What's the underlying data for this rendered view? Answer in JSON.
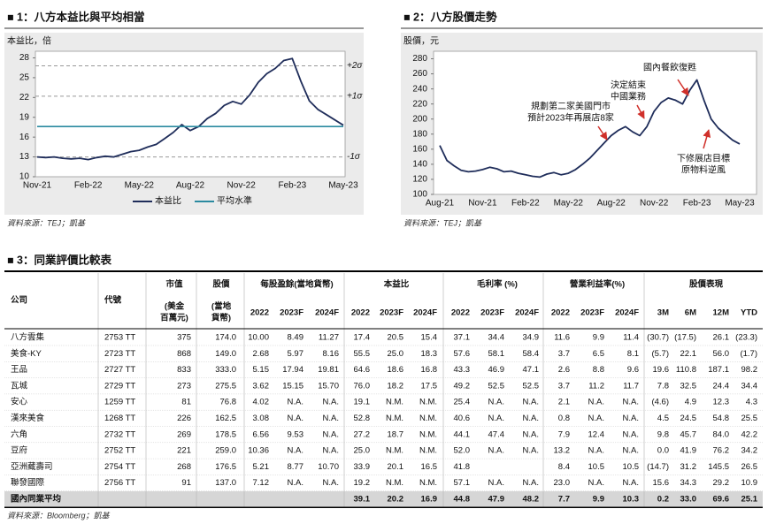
{
  "chart_data": [
    {
      "type": "line",
      "title": "■ 1：八方本益比與平均相當",
      "ylabel": "本益比，倍",
      "categories": [
        "Nov-21",
        null,
        null,
        null,
        null,
        null,
        "Feb-22",
        null,
        null,
        null,
        null,
        null,
        "May-22",
        null,
        null,
        null,
        null,
        null,
        "Aug-22",
        null,
        null,
        null,
        null,
        null,
        "Nov-22",
        null,
        null,
        null,
        null,
        null,
        "Feb-23",
        null,
        null,
        null,
        null,
        null,
        "May-23"
      ],
      "series": [
        {
          "name": "本益比",
          "color": "#1f2d5a",
          "values": [
            13.0,
            12.9,
            13.0,
            12.8,
            12.7,
            12.8,
            12.6,
            12.9,
            13.1,
            13.0,
            13.4,
            13.8,
            14.0,
            14.5,
            14.9,
            15.8,
            16.7,
            17.9,
            17.0,
            17.6,
            18.8,
            19.6,
            20.8,
            21.4,
            21.0,
            22.4,
            24.3,
            25.6,
            26.4,
            27.6,
            27.9,
            24.5,
            21.5,
            20.2,
            19.4,
            18.6,
            17.8
          ]
        },
        {
          "name": "平均水準",
          "color": "#2b8aa0",
          "values": [
            17.6,
            17.6,
            17.6,
            17.6,
            17.6,
            17.6,
            17.6,
            17.6,
            17.6,
            17.6,
            17.6,
            17.6,
            17.6,
            17.6,
            17.6,
            17.6,
            17.6,
            17.6,
            17.6,
            17.6,
            17.6,
            17.6,
            17.6,
            17.6,
            17.6,
            17.6,
            17.6,
            17.6,
            17.6,
            17.6,
            17.6,
            17.6,
            17.6,
            17.6,
            17.6,
            17.6,
            17.6
          ]
        }
      ],
      "reference_lines": [
        {
          "value": 26.8,
          "label": "+2σ"
        },
        {
          "value": 22.2,
          "label": "+1σ"
        },
        {
          "value": 13.0,
          "label": "-1σ"
        }
      ],
      "ylim": [
        10,
        29
      ],
      "yticks": [
        10,
        13,
        16,
        19,
        22,
        25,
        28
      ],
      "legend": "bottom",
      "source": "資料來源：TEJ；凱基"
    },
    {
      "type": "line",
      "title": "■ 2：八方股價走勢",
      "ylabel": "股價，元",
      "categories": [
        "Aug-21",
        null,
        null,
        null,
        null,
        null,
        "Nov-21",
        null,
        null,
        null,
        null,
        null,
        "Feb-22",
        null,
        null,
        null,
        null,
        null,
        "May-22",
        null,
        null,
        null,
        null,
        null,
        "Aug-22",
        null,
        null,
        null,
        null,
        null,
        "Nov-22",
        null,
        null,
        null,
        null,
        null,
        "Feb-23",
        null,
        null,
        null,
        null,
        null,
        "May-23"
      ],
      "series": [
        {
          "name": "股價",
          "color": "#1f2d5a",
          "values": [
            165,
            145,
            138,
            132,
            130,
            131,
            133,
            136,
            134,
            130,
            131,
            128,
            126,
            124,
            123,
            127,
            129,
            126,
            128,
            133,
            140,
            148,
            158,
            168,
            178,
            185,
            190,
            183,
            178,
            190,
            210,
            222,
            228,
            225,
            220,
            238,
            252,
            225,
            200,
            188,
            180,
            172,
            167
          ]
        }
      ],
      "annotations": [
        {
          "lines": [
            "規劃第二家美國門市",
            "預計2023年再展店8家"
          ]
        },
        {
          "lines": [
            "決定結束",
            "中國業務"
          ]
        },
        {
          "lines": [
            "國內餐飲復甦"
          ]
        },
        {
          "lines": [
            "下修展店目標",
            "原物料逆風"
          ]
        }
      ],
      "ylim": [
        100,
        290
      ],
      "yticks": [
        100,
        120,
        140,
        160,
        180,
        200,
        220,
        240,
        260,
        280
      ],
      "source": "資料來源：TEJ；凱基"
    }
  ],
  "table": {
    "title": "■ 3：同業評價比較表",
    "company": "公司",
    "code": "代號",
    "mktcap": [
      "市值",
      "(美金",
      "百萬元)"
    ],
    "price": [
      "股價",
      "(當地",
      "貨幣)"
    ],
    "groups": [
      {
        "name": "每股盈餘(當地貨幣)",
        "subs": [
          "2022",
          "2023F",
          "2024F"
        ]
      },
      {
        "name": "本益比",
        "subs": [
          "2022",
          "2023F",
          "2024F"
        ]
      },
      {
        "name": "毛利率 (%)",
        "subs": [
          "2022",
          "2023F",
          "2024F"
        ]
      },
      {
        "name": "營業利益率(%)",
        "subs": [
          "2022",
          "2023F",
          "2024F"
        ]
      },
      {
        "name": "股價表現",
        "subs": [
          "3M",
          "6M",
          "12M",
          "YTD"
        ]
      }
    ],
    "rows": [
      [
        "八方雲集",
        "2753 TT",
        "375",
        "174.0",
        "10.00",
        "8.49",
        "11.27",
        "17.4",
        "20.5",
        "15.4",
        "37.1",
        "34.4",
        "34.9",
        "11.6",
        "9.9",
        "11.4",
        "(30.7)",
        "(17.5)",
        "26.1",
        "(23.3)"
      ],
      [
        "美食-KY",
        "2723 TT",
        "868",
        "149.0",
        "2.68",
        "5.97",
        "8.16",
        "55.5",
        "25.0",
        "18.3",
        "57.6",
        "58.1",
        "58.4",
        "3.7",
        "6.5",
        "8.1",
        "(5.7)",
        "22.1",
        "56.0",
        "(1.7)"
      ],
      [
        "王品",
        "2727 TT",
        "833",
        "333.0",
        "5.15",
        "17.94",
        "19.81",
        "64.6",
        "18.6",
        "16.8",
        "43.3",
        "46.9",
        "47.1",
        "2.6",
        "8.8",
        "9.6",
        "19.6",
        "110.8",
        "187.1",
        "98.2"
      ],
      [
        "瓦城",
        "2729 TT",
        "273",
        "275.5",
        "3.62",
        "15.15",
        "15.70",
        "76.0",
        "18.2",
        "17.5",
        "49.2",
        "52.5",
        "52.5",
        "3.7",
        "11.2",
        "11.7",
        "7.8",
        "32.5",
        "24.4",
        "34.4"
      ],
      [
        "安心",
        "1259 TT",
        "81",
        "76.8",
        "4.02",
        "N.A.",
        "N.A.",
        "19.1",
        "N.M.",
        "N.M.",
        "25.4",
        "N.A.",
        "N.A.",
        "2.1",
        "N.A.",
        "N.A.",
        "(4.6)",
        "4.9",
        "12.3",
        "4.3"
      ],
      [
        "漢來美食",
        "1268 TT",
        "226",
        "162.5",
        "3.08",
        "N.A.",
        "N.A.",
        "52.8",
        "N.M.",
        "N.M.",
        "40.6",
        "N.A.",
        "N.A.",
        "0.8",
        "N.A.",
        "N.A.",
        "4.5",
        "24.5",
        "54.8",
        "25.5"
      ],
      [
        "六角",
        "2732 TT",
        "269",
        "178.5",
        "6.56",
        "9.53",
        "N.A.",
        "27.2",
        "18.7",
        "N.M.",
        "44.1",
        "47.4",
        "N.A.",
        "7.9",
        "12.4",
        "N.A.",
        "9.8",
        "45.7",
        "84.0",
        "42.2"
      ],
      [
        "豆府",
        "2752 TT",
        "221",
        "259.0",
        "10.36",
        "N.A.",
        "N.A.",
        "25.0",
        "N.M.",
        "N.M.",
        "52.0",
        "N.A.",
        "N.A.",
        "13.2",
        "N.A.",
        "N.A.",
        "0.0",
        "41.9",
        "76.2",
        "34.2"
      ],
      [
        "亞洲藏壽司",
        "2754 TT",
        "268",
        "176.5",
        "5.21",
        "8.77",
        "10.70",
        "33.9",
        "20.1",
        "16.5",
        "41.8",
        null,
        null,
        "8.4",
        "10.5",
        "10.5",
        "(14.7)",
        "31.2",
        "145.5",
        "26.5"
      ],
      [
        "聯發國際",
        "2756 TT",
        "91",
        "137.0",
        "7.12",
        "N.A.",
        "N.A.",
        "19.2",
        "N.M.",
        "N.M.",
        "57.1",
        "N.A.",
        "N.A.",
        "23.0",
        "N.A.",
        "N.A.",
        "15.6",
        "34.3",
        "29.2",
        "10.9"
      ],
      [
        "國內同業平均",
        null,
        null,
        null,
        null,
        null,
        null,
        "39.1",
        "20.2",
        "16.9",
        "44.8",
        "47.9",
        "48.2",
        "7.7",
        "9.9",
        "10.3",
        "0.2",
        "33.0",
        "69.6",
        "25.1"
      ]
    ],
    "source": "資料來源：Bloomberg；凱基"
  }
}
